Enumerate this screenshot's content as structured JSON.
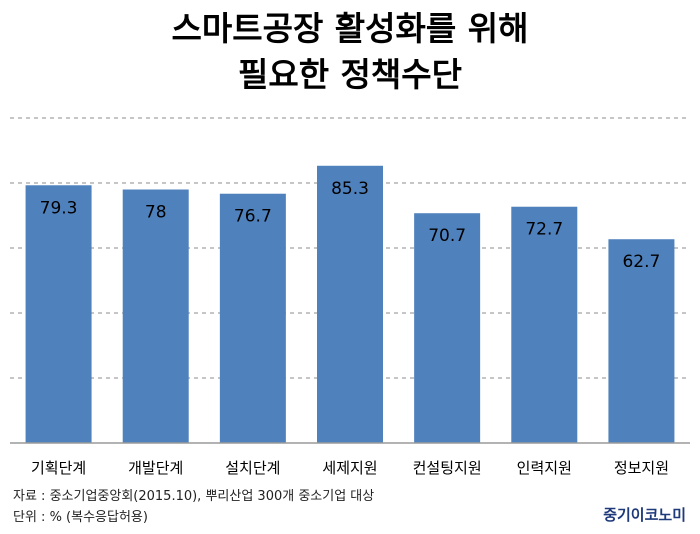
{
  "title": {
    "line1": "스마트공장 활성화를 위해",
    "line2": "필요한 정책수단"
  },
  "chart_data": {
    "type": "bar",
    "title": "스마트공장 활성화를 위해 필요한 정책수단",
    "xlabel": "",
    "ylabel": "",
    "unit": "%",
    "categories": [
      "기획단계",
      "개발단계",
      "설치단계",
      "세제지원",
      "컨설팅지원",
      "인력지원",
      "정보지원"
    ],
    "values": [
      79.3,
      78,
      76.7,
      85.3,
      70.7,
      72.7,
      62.7
    ],
    "value_labels": [
      "79.3",
      "78",
      "76.7",
      "85.3",
      "70.7",
      "72.7",
      "62.7"
    ],
    "ylim": [
      0,
      100
    ],
    "grid": true,
    "grid_style": "dashed",
    "bar_color": "#4f81bd",
    "axis_color": "#9a9a9a",
    "label_color": "#000000"
  },
  "footer": {
    "source": "자료 : 중소기업중앙회(2015.10), 뿌리산업 300개 중소기업 대상",
    "unit": "단위 : % (복수응답허용)",
    "brand": "중기이코노미",
    "brand_color": "#1f3a7a"
  }
}
